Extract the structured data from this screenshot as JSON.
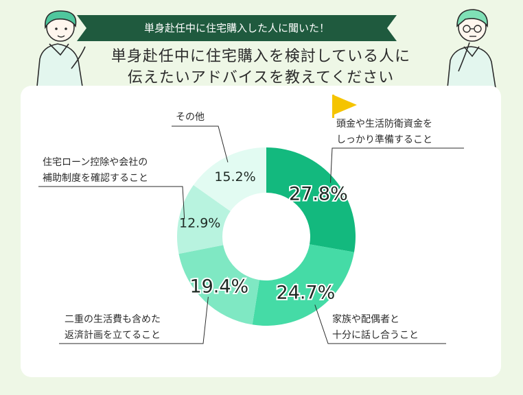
{
  "header": {
    "ribbon": "単身赴任中に住宅購入した人に聞いた！",
    "title_line1": "単身赴任中に住宅購入を検討している人に",
    "title_line2": "伝えたいアドバイスを教えてください"
  },
  "colors": {
    "background": "#eef7e6",
    "ribbon": "#1f5a3e",
    "flag": "#f5c400",
    "slices": [
      "#13b97e",
      "#45dba6",
      "#7fe8c3",
      "#b8f3df",
      "#e2fbf2"
    ]
  },
  "labels": [
    {
      "line1": "頭金や生活防衛資金を",
      "line2": "しっかり準備すること"
    },
    {
      "line1": "家族や配偶者と",
      "line2": "十分に話し合うこと"
    },
    {
      "line1": "二重の生活費も含めた",
      "line2": "返済計画を立てること"
    },
    {
      "line1": "住宅ローン控除や会社の",
      "line2": "補助制度を確認すること"
    },
    {
      "line1": "その他",
      "line2": ""
    }
  ],
  "chart_data": {
    "type": "pie",
    "categories": [
      "頭金や生活防衛資金をしっかり準備すること",
      "家族や配偶者と十分に話し合うこと",
      "二重の生活費も含めた返済計画を立てること",
      "住宅ローン控除や会社の補助制度を確認すること",
      "その他"
    ],
    "values": [
      27.8,
      24.7,
      19.4,
      12.9,
      15.2
    ],
    "value_labels": [
      "27.8%",
      "24.7%",
      "19.4%",
      "12.9%",
      "15.2%"
    ]
  }
}
